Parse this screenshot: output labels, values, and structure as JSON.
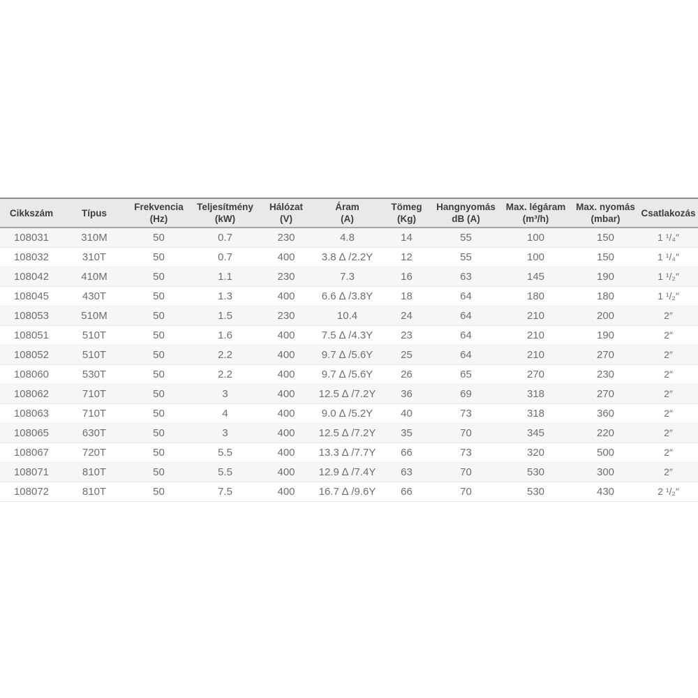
{
  "colors": {
    "page_background": "#ffffff",
    "header_background": "#e9e9e9",
    "top_rule": "#8a8a8a",
    "header_rule": "#a6a6a6",
    "stripe": "#f6f6f6",
    "header_text": "#3d3d3d",
    "body_text": "#6e6e6e"
  },
  "table": {
    "columns": [
      {
        "id": "cikkszam",
        "line1": "Cikkszám",
        "line2": ""
      },
      {
        "id": "tipus",
        "line1": "Típus",
        "line2": ""
      },
      {
        "id": "frekvencia",
        "line1": "Frekvencia",
        "line2": "(Hz)"
      },
      {
        "id": "teljesitmeny",
        "line1": "Teljesítmény",
        "line2": "(kW)"
      },
      {
        "id": "halozat",
        "line1": "Hálózat",
        "line2": "(V)"
      },
      {
        "id": "aram",
        "line1": "Áram",
        "line2": "(A)"
      },
      {
        "id": "tomeg",
        "line1": "Tömeg",
        "line2": "(Kg)"
      },
      {
        "id": "hangnyomas",
        "line1": "Hangnyomás",
        "line2": "dB (A)"
      },
      {
        "id": "max-legaram",
        "line1": "Max. légáram",
        "line2": "(m³/h)"
      },
      {
        "id": "max-nyomas",
        "line1": "Max. nyomás",
        "line2": "(mbar)"
      },
      {
        "id": "csatlakozas",
        "line1": "Csatlakozás",
        "line2": ""
      }
    ],
    "rows": [
      [
        "108031",
        "310M",
        "50",
        "0.7",
        "230",
        "4.8",
        "14",
        "55",
        "100",
        "150",
        "1 ¹/₄″"
      ],
      [
        "108032",
        "310T",
        "50",
        "0.7",
        "400",
        "3.8 ∆ /2.2Y",
        "12",
        "55",
        "100",
        "150",
        "1 ¹/₄″"
      ],
      [
        "108042",
        "410M",
        "50",
        "1.1",
        "230",
        "7.3",
        "16",
        "63",
        "145",
        "190",
        "1 ¹/₂″"
      ],
      [
        "108045",
        "430T",
        "50",
        "1.3",
        "400",
        "6.6 ∆ /3.8Y",
        "18",
        "64",
        "180",
        "180",
        "1 ¹/₂″"
      ],
      [
        "108053",
        "510M",
        "50",
        "1.5",
        "230",
        "10.4",
        "24",
        "64",
        "210",
        "200",
        "2″"
      ],
      [
        "108051",
        "510T",
        "50",
        "1.6",
        "400",
        "7.5 ∆ /4.3Y",
        "23",
        "64",
        "210",
        "190",
        "2″"
      ],
      [
        "108052",
        "510T",
        "50",
        "2.2",
        "400",
        "9.7 ∆ /5.6Y",
        "25",
        "64",
        "210",
        "270",
        "2″"
      ],
      [
        "108060",
        "530T",
        "50",
        "2.2",
        "400",
        "9.7 ∆ /5.6Y",
        "26",
        "65",
        "270",
        "230",
        "2″"
      ],
      [
        "108062",
        "710T",
        "50",
        "3",
        "400",
        "12.5 ∆ /7.2Y",
        "36",
        "69",
        "318",
        "270",
        "2″"
      ],
      [
        "108063",
        "710T",
        "50",
        "4",
        "400",
        "9.0 ∆ /5.2Y",
        "40",
        "73",
        "318",
        "360",
        "2″"
      ],
      [
        "108065",
        "630T",
        "50",
        "3",
        "400",
        "12.5 ∆ /7.2Y",
        "35",
        "70",
        "345",
        "220",
        "2″"
      ],
      [
        "108067",
        "720T",
        "50",
        "5.5",
        "400",
        "13.3 ∆ /7.7Y",
        "66",
        "73",
        "320",
        "500",
        "2″"
      ],
      [
        "108071",
        "810T",
        "50",
        "5.5",
        "400",
        "12.9 ∆ /7.4Y",
        "63",
        "70",
        "530",
        "300",
        "2″"
      ],
      [
        "108072",
        "810T",
        "50",
        "7.5",
        "400",
        "16.7 ∆ /9.6Y",
        "66",
        "70",
        "530",
        "430",
        "2 ¹/₂″"
      ]
    ]
  }
}
